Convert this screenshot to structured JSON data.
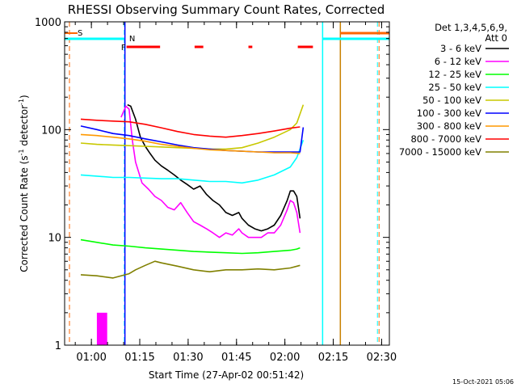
{
  "chart_data": {
    "type": "line",
    "title": "RHESSI Observing Summary Count Rates, Corrected",
    "xlabel": "Start Time (27-Apr-02 00:51:42)",
    "ylabel_main": "Corrected Count Rate (s",
    "ylabel_sup1": "-1",
    "ylabel_mid": " detector",
    "ylabel_sup2": "-1",
    "ylabel_end": ")",
    "x_range_minutes": [
      0,
      100.7
    ],
    "y_scale": "log",
    "ylim": [
      1,
      1000
    ],
    "x_ticks": [
      {
        "minute": 8.3,
        "label": "01:00"
      },
      {
        "minute": 23.3,
        "label": "01:15"
      },
      {
        "minute": 38.3,
        "label": "01:30"
      },
      {
        "minute": 53.3,
        "label": "01:45"
      },
      {
        "minute": 68.3,
        "label": "02:00"
      },
      {
        "minute": 83.3,
        "label": "02:15"
      },
      {
        "minute": 98.3,
        "label": "02:30"
      }
    ],
    "y_ticks": [
      {
        "value": 1,
        "label": "1"
      },
      {
        "value": 10,
        "label": "10"
      },
      {
        "value": 100,
        "label": "100"
      },
      {
        "value": 1000,
        "label": "1000"
      }
    ],
    "legend_header": [
      "Det 1,3,4,5,6,9,",
      "Att 0"
    ],
    "series": [
      {
        "name": "3 - 6 keV",
        "color": "#000000",
        "points": [
          [
            19.5,
            170
          ],
          [
            20.5,
            165
          ],
          [
            22,
            125
          ],
          [
            23.5,
            85
          ],
          [
            25,
            70
          ],
          [
            26.5,
            60
          ],
          [
            28,
            52
          ],
          [
            30,
            46
          ],
          [
            32,
            42
          ],
          [
            34,
            38
          ],
          [
            36,
            34
          ],
          [
            38,
            31
          ],
          [
            40,
            28
          ],
          [
            42,
            30
          ],
          [
            44,
            25
          ],
          [
            46,
            22
          ],
          [
            48,
            20
          ],
          [
            50,
            17
          ],
          [
            52,
            16
          ],
          [
            54,
            17
          ],
          [
            55,
            15
          ],
          [
            57,
            13
          ],
          [
            59,
            12
          ],
          [
            61,
            11.5
          ],
          [
            63,
            12
          ],
          [
            65,
            13
          ],
          [
            67,
            16
          ],
          [
            69,
            22
          ],
          [
            70,
            27
          ],
          [
            71,
            27
          ],
          [
            72,
            24
          ],
          [
            73,
            15
          ]
        ]
      },
      {
        "name": "6 - 12 keV",
        "color": "#ff00ff",
        "points": [
          [
            17.5,
            130
          ],
          [
            19,
            165
          ],
          [
            20,
            155
          ],
          [
            21,
            80
          ],
          [
            22,
            50
          ],
          [
            23,
            40
          ],
          [
            24,
            32
          ],
          [
            26,
            28
          ],
          [
            28,
            24
          ],
          [
            30,
            22
          ],
          [
            32,
            19
          ],
          [
            34,
            18
          ],
          [
            36,
            21
          ],
          [
            38,
            17
          ],
          [
            40,
            14
          ],
          [
            42,
            13
          ],
          [
            44,
            12
          ],
          [
            46,
            11
          ],
          [
            48,
            10
          ],
          [
            50,
            11
          ],
          [
            52,
            10.5
          ],
          [
            54,
            12
          ],
          [
            55,
            11
          ],
          [
            57,
            10
          ],
          [
            59,
            10
          ],
          [
            61,
            10
          ],
          [
            63,
            11
          ],
          [
            65,
            11
          ],
          [
            67,
            13
          ],
          [
            69,
            18
          ],
          [
            70,
            22
          ],
          [
            71,
            21
          ],
          [
            72,
            17
          ],
          [
            73,
            11
          ]
        ]
      },
      {
        "name": "12 - 25 keV",
        "color": "#00ff00",
        "points": [
          [
            5,
            9.5
          ],
          [
            10,
            9
          ],
          [
            15,
            8.5
          ],
          [
            20,
            8.3
          ],
          [
            25,
            8
          ],
          [
            30,
            7.8
          ],
          [
            35,
            7.6
          ],
          [
            40,
            7.4
          ],
          [
            45,
            7.3
          ],
          [
            50,
            7.2
          ],
          [
            55,
            7.1
          ],
          [
            60,
            7.2
          ],
          [
            65,
            7.4
          ],
          [
            70,
            7.6
          ],
          [
            72,
            7.8
          ],
          [
            73,
            8
          ]
        ]
      },
      {
        "name": "25 - 50 keV",
        "color": "#00ffff",
        "points": [
          [
            5,
            38
          ],
          [
            10,
            37
          ],
          [
            15,
            36
          ],
          [
            20,
            36
          ],
          [
            25,
            35.5
          ],
          [
            30,
            35
          ],
          [
            35,
            35
          ],
          [
            40,
            34
          ],
          [
            45,
            33
          ],
          [
            50,
            33
          ],
          [
            55,
            32
          ],
          [
            60,
            34
          ],
          [
            65,
            38
          ],
          [
            70,
            45
          ],
          [
            72,
            55
          ],
          [
            74,
            80
          ]
        ]
      },
      {
        "name": "50 - 100 keV",
        "color": "#c8c800",
        "points": [
          [
            5,
            75
          ],
          [
            10,
            73
          ],
          [
            15,
            72
          ],
          [
            20,
            71
          ],
          [
            25,
            70
          ],
          [
            30,
            69
          ],
          [
            35,
            68
          ],
          [
            40,
            67
          ],
          [
            45,
            66
          ],
          [
            50,
            66
          ],
          [
            55,
            68
          ],
          [
            60,
            75
          ],
          [
            65,
            85
          ],
          [
            70,
            100
          ],
          [
            72,
            115
          ],
          [
            74,
            170
          ]
        ]
      },
      {
        "name": "100 - 300 keV",
        "color": "#0000ff",
        "points": [
          [
            5,
            108
          ],
          [
            10,
            100
          ],
          [
            15,
            92
          ],
          [
            20,
            88
          ],
          [
            25,
            82
          ],
          [
            30,
            77
          ],
          [
            35,
            72
          ],
          [
            40,
            68
          ],
          [
            45,
            66
          ],
          [
            50,
            64
          ],
          [
            55,
            63
          ],
          [
            60,
            62
          ],
          [
            65,
            62
          ],
          [
            70,
            62
          ],
          [
            73,
            62
          ],
          [
            74,
            105
          ]
        ]
      },
      {
        "name": "300 - 800 keV",
        "color": "#ff9900",
        "points": [
          [
            5,
            90
          ],
          [
            10,
            88
          ],
          [
            15,
            85
          ],
          [
            20,
            82
          ],
          [
            25,
            78
          ],
          [
            30,
            73
          ],
          [
            35,
            70
          ],
          [
            40,
            67
          ],
          [
            45,
            65
          ],
          [
            50,
            64
          ],
          [
            55,
            63
          ],
          [
            60,
            62
          ],
          [
            65,
            61
          ],
          [
            70,
            61
          ],
          [
            73,
            60
          ]
        ]
      },
      {
        "name": "800 - 7000 keV",
        "color": "#ff0000",
        "points": [
          [
            5,
            125
          ],
          [
            10,
            122
          ],
          [
            15,
            120
          ],
          [
            20,
            118
          ],
          [
            25,
            112
          ],
          [
            30,
            104
          ],
          [
            35,
            96
          ],
          [
            40,
            90
          ],
          [
            45,
            87
          ],
          [
            50,
            85
          ],
          [
            55,
            88
          ],
          [
            60,
            92
          ],
          [
            65,
            97
          ],
          [
            70,
            103
          ],
          [
            73,
            106
          ]
        ]
      },
      {
        "name": "7000 - 15000 keV",
        "color": "#808000",
        "points": [
          [
            5,
            4.5
          ],
          [
            10,
            4.4
          ],
          [
            15,
            4.2
          ],
          [
            20,
            4.6
          ],
          [
            22,
            5
          ],
          [
            25,
            5.5
          ],
          [
            28,
            6
          ],
          [
            30,
            5.8
          ],
          [
            35,
            5.4
          ],
          [
            40,
            5
          ],
          [
            45,
            4.8
          ],
          [
            50,
            5
          ],
          [
            55,
            5
          ],
          [
            60,
            5.1
          ],
          [
            65,
            5
          ],
          [
            70,
            5.2
          ],
          [
            73,
            5.5
          ]
        ]
      }
    ],
    "flag_bars": [
      {
        "name": "S",
        "color": "#ff6600",
        "label": "S"
      },
      {
        "name": "N",
        "color": "#00ffff",
        "label": "N"
      },
      {
        "name": "F",
        "color": "#ff0000",
        "label": "F"
      }
    ]
  },
  "timestamp": "15-Oct-2021 05:06"
}
